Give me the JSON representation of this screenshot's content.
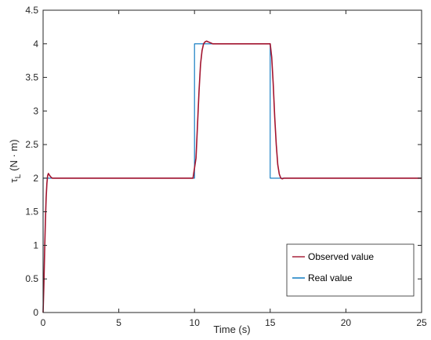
{
  "chart_data": {
    "type": "line",
    "title": "",
    "xlabel": "Time (s)",
    "ylabel": "τ",
    "ylabel_sub": "L",
    "ylabel_unit": "(N · m)",
    "xlim": [
      0,
      25
    ],
    "ylim": [
      0,
      4.5
    ],
    "xticks": [
      0,
      5,
      10,
      15,
      20,
      25
    ],
    "xtick_labels": [
      "0",
      "5",
      "10",
      "15",
      "20",
      "25"
    ],
    "yticks": [
      0,
      0.5,
      1,
      1.5,
      2,
      2.5,
      3,
      3.5,
      4,
      4.5
    ],
    "ytick_labels": [
      "0",
      "0.5",
      "1",
      "1.5",
      "2",
      "2.5",
      "3",
      "3.5",
      "4",
      "4.5"
    ],
    "grid": false,
    "legend_position": "bottom-right",
    "series": [
      {
        "name": "Observed value",
        "color": "#a2142f",
        "x": [
          0,
          0.05,
          0.1,
          0.15,
          0.2,
          0.25,
          0.3,
          0.35,
          0.4,
          0.5,
          0.6,
          0.8,
          1.0,
          2.0,
          3.0,
          4.0,
          5.0,
          6.0,
          7.0,
          8.0,
          9.0,
          9.9,
          10.1,
          10.2,
          10.3,
          10.4,
          10.5,
          10.6,
          10.7,
          10.8,
          10.9,
          11.0,
          11.2,
          12.0,
          13.0,
          14.0,
          15.0,
          15.1,
          15.2,
          15.3,
          15.4,
          15.5,
          15.6,
          15.7,
          15.8,
          15.9,
          16.0,
          16.2,
          17.0,
          18.0,
          19.0,
          20.0,
          21.0,
          22.0,
          23.0,
          24.0,
          25.0
        ],
        "y": [
          0.0,
          0.4,
          0.9,
          1.35,
          1.7,
          1.92,
          2.04,
          2.07,
          2.05,
          2.02,
          2.0,
          2.0,
          2.0,
          2.0,
          2.0,
          2.0,
          2.0,
          2.0,
          2.0,
          2.0,
          2.0,
          2.0,
          2.3,
          2.8,
          3.3,
          3.7,
          3.9,
          4.0,
          4.03,
          4.04,
          4.03,
          4.02,
          4.0,
          4.0,
          4.0,
          4.0,
          4.0,
          3.8,
          3.4,
          2.9,
          2.5,
          2.2,
          2.06,
          2.0,
          1.99,
          2.0,
          2.0,
          2.0,
          2.0,
          2.0,
          2.0,
          2.0,
          2.0,
          2.0,
          2.0,
          2.0,
          2.0
        ]
      },
      {
        "name": "Real value",
        "color": "#0072bd",
        "x": [
          0,
          0,
          10,
          10,
          15,
          15,
          25
        ],
        "y": [
          0,
          2,
          2,
          4,
          4,
          2,
          2
        ]
      }
    ]
  }
}
